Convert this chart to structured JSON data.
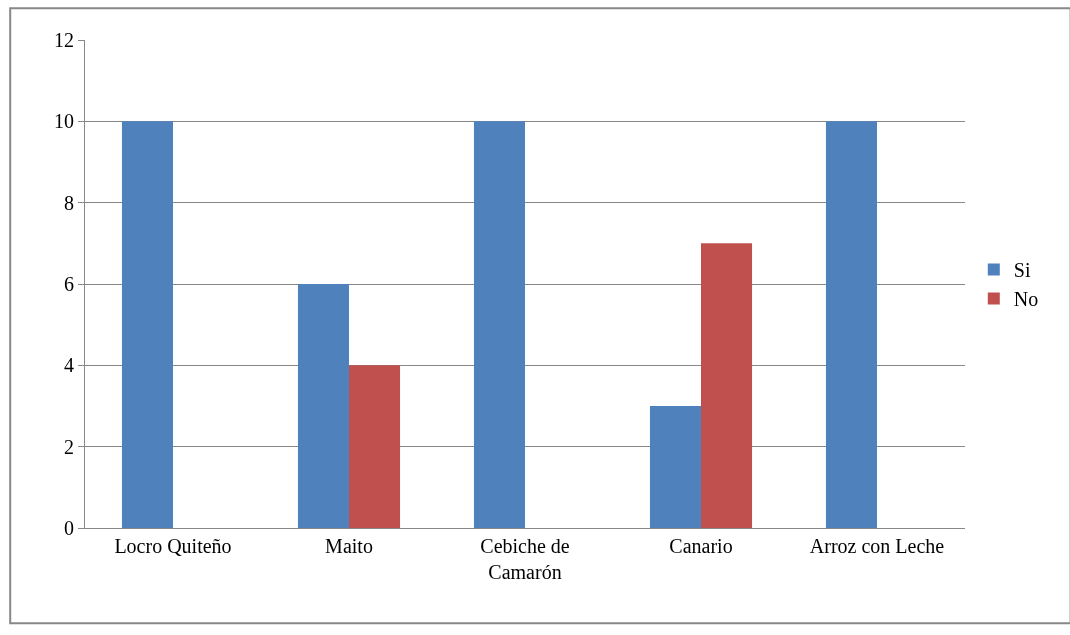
{
  "chart_data": {
    "type": "bar",
    "categories": [
      "Locro Quiteño",
      "Maito",
      "Cebiche de Camarón",
      "Canario",
      "Arroz con Leche"
    ],
    "series": [
      {
        "name": "Si",
        "color": "#4f81bd",
        "values": [
          10,
          6,
          10,
          3,
          10
        ]
      },
      {
        "name": "No",
        "color": "#c0504d",
        "values": [
          0,
          4,
          0,
          7,
          0
        ]
      }
    ],
    "ylim": [
      0,
      12
    ],
    "yticks": [
      0,
      2,
      4,
      6,
      8,
      10,
      12
    ],
    "grid": "y",
    "legend": "right"
  }
}
